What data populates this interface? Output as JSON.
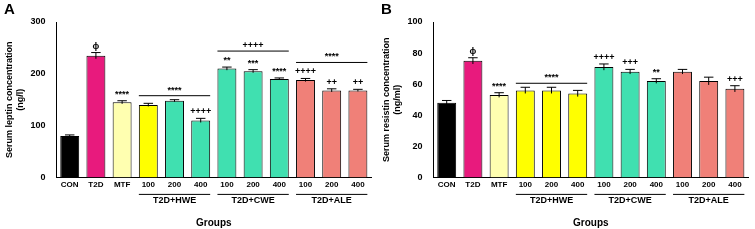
{
  "chart_data": [
    {
      "type": "bar",
      "title": "A",
      "ylabel": "Serum leptin concentration\n(ng/l)",
      "xlabel": "Groups",
      "categories": [
        "CON",
        "T2D",
        "MTF",
        "100",
        "200",
        "400",
        "100",
        "200",
        "400",
        "100",
        "200",
        "400"
      ],
      "group_labels": [
        null,
        null,
        null,
        "T2D+HWE",
        "T2D+HWE",
        "T2D+HWE",
        "T2D+CWE",
        "T2D+CWE",
        "T2D+CWE",
        "T2D+ALE",
        "T2D+ALE",
        "T2D+ALE"
      ],
      "group_marks": [
        "****",
        "++++",
        "****"
      ],
      "values": [
        80,
        235,
        145,
        140,
        148,
        110,
        210,
        205,
        190,
        188,
        168,
        168
      ],
      "errors": [
        2,
        6,
        3,
        3,
        2,
        4,
        3,
        3,
        2,
        3,
        3,
        2
      ],
      "annotations": [
        null,
        "ϕ",
        "****",
        null,
        null,
        "++++",
        "**",
        "***",
        "****",
        "++++",
        "++",
        "++"
      ],
      "colors": [
        "#000000",
        "#e81a7d",
        "#ffffb0",
        "#ffff00",
        "#40e0b0",
        "#40e0b0",
        "#40e0b0",
        "#40e0b0",
        "#40e0b0",
        "#f08078",
        "#f08078",
        "#f08078"
      ],
      "ylim": [
        0,
        300
      ],
      "yticks": [
        0,
        100,
        200,
        300
      ],
      "grid": false
    },
    {
      "type": "bar",
      "title": "B",
      "ylabel": "Serum resistin concentration\n(ng/ml)",
      "xlabel": "Groups",
      "categories": [
        "CON",
        "T2D",
        "MTF",
        "100",
        "200",
        "400",
        "100",
        "200",
        "400",
        "100",
        "200",
        "400"
      ],
      "group_labels": [
        null,
        null,
        null,
        "T2D+HWE",
        "T2D+HWE",
        "T2D+HWE",
        "T2D+CWE",
        "T2D+CWE",
        "T2D+CWE",
        "T2D+ALE",
        "T2D+ALE",
        "T2D+ALE"
      ],
      "group_marks": [
        "****",
        null,
        null
      ],
      "values": [
        48,
        75,
        53,
        56,
        56,
        54,
        71,
        68,
        62,
        68,
        62,
        57
      ],
      "errors": [
        1.5,
        2,
        1.5,
        2,
        2,
        2,
        2,
        1.5,
        1.5,
        1.5,
        2.5,
        2
      ],
      "annotations": [
        null,
        "ϕ",
        "****",
        null,
        null,
        null,
        "++++",
        "+++",
        "**",
        null,
        null,
        "+++"
      ],
      "colors": [
        "#000000",
        "#e81a7d",
        "#ffffb0",
        "#ffff00",
        "#ffff00",
        "#ffff00",
        "#40e0b0",
        "#40e0b0",
        "#40e0b0",
        "#f08078",
        "#f08078",
        "#f08078"
      ],
      "ylim": [
        0,
        100
      ],
      "yticks": [
        0,
        20,
        40,
        60,
        80,
        100
      ],
      "grid": false
    }
  ]
}
